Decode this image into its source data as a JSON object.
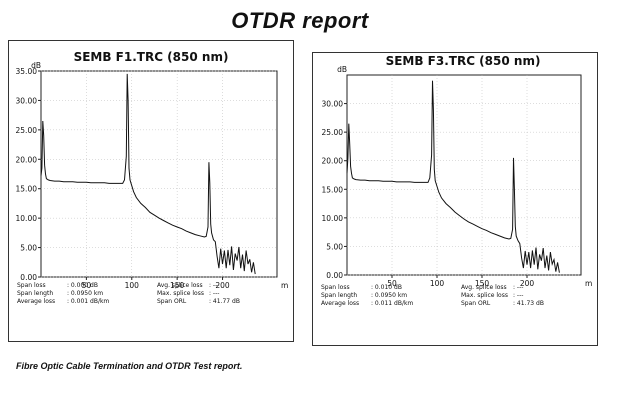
{
  "page_title": "OTDR report",
  "caption": "Fibre Optic Cable Termination and OTDR Test report.",
  "chart_data": [
    {
      "type": "line",
      "title": "SEMB F1.TRC (850 nm)",
      "y_unit": "dB",
      "x_unit": "m",
      "ylim": [
        0,
        35
      ],
      "xlim": [
        0,
        260
      ],
      "y_ticks": [
        "0.00",
        "5.00",
        "10.00",
        "15.00",
        "20.00",
        "25.00",
        "30.00",
        "35.00"
      ],
      "x_ticks": [
        "50",
        "100",
        "150",
        "200"
      ],
      "grid": true,
      "line_color": "#111111",
      "x": [
        0,
        1,
        2,
        3,
        4,
        5,
        6,
        8,
        10,
        15,
        20,
        25,
        30,
        35,
        40,
        45,
        50,
        55,
        60,
        65,
        70,
        75,
        80,
        85,
        90,
        92,
        94,
        95,
        96,
        97,
        98,
        100,
        102,
        105,
        110,
        115,
        120,
        125,
        130,
        135,
        140,
        145,
        150,
        155,
        160,
        165,
        170,
        175,
        180,
        182,
        184,
        185,
        186,
        187,
        188,
        190,
        192,
        194,
        196,
        198,
        200,
        202,
        204,
        206,
        208,
        210,
        212,
        214,
        216,
        218,
        220,
        222,
        224,
        226,
        228,
        230,
        232,
        234,
        236
      ],
      "y": [
        17.2,
        18.5,
        26.5,
        24,
        19,
        17.5,
        16.7,
        16.5,
        16.4,
        16.3,
        16.3,
        16.2,
        16.2,
        16.2,
        16.1,
        16.1,
        16.1,
        16.0,
        16.0,
        16.0,
        16.0,
        15.9,
        15.9,
        15.9,
        15.9,
        16.5,
        20.5,
        34.5,
        30,
        18.5,
        16.5,
        15.5,
        14.5,
        13.5,
        12.5,
        11.8,
        11.0,
        10.5,
        10.0,
        9.6,
        9.2,
        8.8,
        8.5,
        8.2,
        7.8,
        7.5,
        7.2,
        7.0,
        6.8,
        6.9,
        8.5,
        19.5,
        16,
        9,
        7.5,
        6.3,
        6.0,
        3.5,
        1.5,
        4.8,
        2.2,
        4.5,
        1.5,
        4.6,
        2.0,
        5.2,
        1.2,
        4.0,
        2.8,
        5.1,
        1.5,
        3.8,
        1.0,
        4.5,
        2.2,
        3.0,
        0.8,
        2.5,
        0.5
      ],
      "stats_labels": [
        "Span loss",
        "Span length",
        "Average loss"
      ],
      "stats_values": [
        ": 0.000 dB",
        ": 0.0950 km",
        ": 0.001 dB/km"
      ],
      "extra_labels": [
        "Avg. splice loss",
        "Max. splice loss",
        "Span ORL"
      ],
      "extra_values": [
        ": ---",
        ": ---",
        ": 41.77 dB"
      ]
    },
    {
      "type": "line",
      "title": "SEMB F3.TRC (850 nm)",
      "y_unit": "dB",
      "x_unit": "m",
      "ylim": [
        0,
        35
      ],
      "xlim": [
        0,
        260
      ],
      "y_ticks": [
        "0.00",
        "5.00",
        "10.00",
        "15.00",
        "20.00",
        "25.00",
        "30.00"
      ],
      "x_ticks": [
        "50",
        "100",
        "150",
        "200"
      ],
      "grid": true,
      "line_color": "#111111",
      "x": [
        0,
        1,
        2,
        3,
        4,
        5,
        6,
        8,
        10,
        15,
        20,
        25,
        30,
        35,
        40,
        45,
        50,
        55,
        60,
        65,
        70,
        75,
        80,
        85,
        90,
        92,
        94,
        95,
        96,
        97,
        98,
        100,
        102,
        105,
        110,
        115,
        120,
        125,
        130,
        135,
        140,
        145,
        150,
        155,
        160,
        165,
        170,
        175,
        180,
        182,
        184,
        185,
        186,
        187,
        188,
        190,
        192,
        194,
        196,
        198,
        200,
        202,
        204,
        206,
        208,
        210,
        212,
        214,
        216,
        218,
        220,
        222,
        224,
        226,
        228,
        230,
        232,
        234,
        236
      ],
      "y": [
        17.8,
        20.5,
        26.5,
        23,
        19,
        17.8,
        17.0,
        16.8,
        16.7,
        16.6,
        16.6,
        16.5,
        16.5,
        16.5,
        16.4,
        16.4,
        16.4,
        16.3,
        16.3,
        16.3,
        16.3,
        16.2,
        16.2,
        16.2,
        16.2,
        17.0,
        21,
        34.0,
        29,
        18.5,
        16.5,
        15.5,
        14.5,
        13.5,
        12.5,
        11.8,
        11.0,
        10.4,
        9.8,
        9.3,
        8.9,
        8.5,
        8.1,
        7.8,
        7.4,
        7.1,
        6.8,
        6.5,
        6.3,
        6.4,
        8.0,
        20.5,
        15,
        8.5,
        6.8,
        6.0,
        5.5,
        3.0,
        1.2,
        4.2,
        1.8,
        4.0,
        1.2,
        4.3,
        1.8,
        4.8,
        1.0,
        3.6,
        2.5,
        4.7,
        1.2,
        3.4,
        0.8,
        4.0,
        1.9,
        2.7,
        0.6,
        2.2,
        0.4
      ],
      "stats_labels": [
        "Span loss",
        "Span length",
        "Average loss"
      ],
      "stats_values": [
        ": 0.010 dB",
        ": 0.0950 km",
        ": 0.011 dB/km"
      ],
      "extra_labels": [
        "Avg. splice loss",
        "Max. splice loss",
        "Span ORL"
      ],
      "extra_values": [
        ": ---",
        ": ---",
        ": 41.73 dB"
      ]
    }
  ]
}
